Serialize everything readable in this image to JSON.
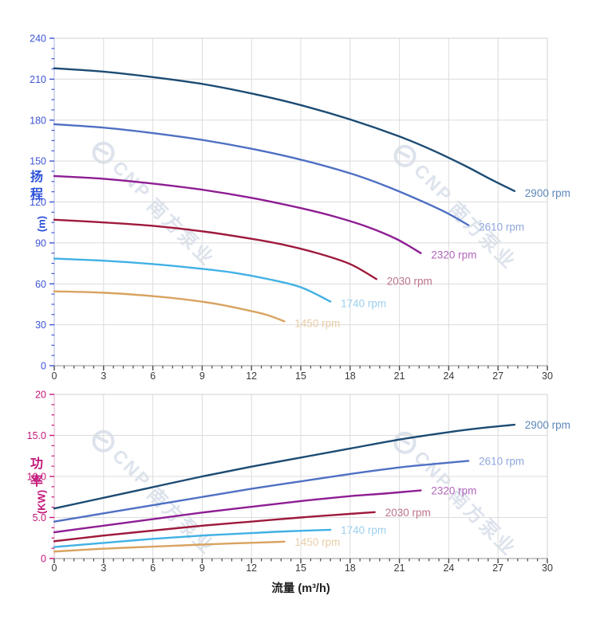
{
  "watermark": {
    "cnp": "CNP",
    "cn": "南方泵业",
    "color": "#c9d3e2"
  },
  "axes": {
    "head": {
      "zh": "扬程",
      "unit": "(m)",
      "title_color": "#2b50d9"
    },
    "power": {
      "zh": "功率",
      "unit": "(KW)",
      "title_color": "#c2187a"
    },
    "flow": {
      "label": "流量 (m³/h)",
      "num_color": "#3a3a3a",
      "tick_color": "#4a4a4a"
    }
  },
  "chart_data": [
    {
      "type": "line",
      "name": "head-vs-flow",
      "title": "",
      "xlabel": "流量 (m³/h)",
      "ylabel": "扬程 (m)",
      "xlim": [
        0,
        30
      ],
      "ylim": [
        0,
        240
      ],
      "xticks": [
        "0",
        "3",
        "6",
        "9",
        "12",
        "15",
        "18",
        "21",
        "24",
        "27",
        "30"
      ],
      "yticks": [
        "0",
        "30",
        "60",
        "90",
        "120",
        "150",
        "180",
        "210",
        "240"
      ],
      "grid": true,
      "legend_position": "labels-at-curve-ends",
      "axis_color": "#3d55d2",
      "axis_line_color": "#c4caec",
      "grid_color": "#dcdcdc",
      "border_color": "#d0d0d0",
      "bottom_line_color": "#a8a8a8",
      "series": [
        {
          "name": "2900 rpm",
          "color": "#1c4b73",
          "label_color": "#5e87ba",
          "points": [
            [
              0,
              218
            ],
            [
              3,
              215.5
            ],
            [
              6,
              211.5
            ],
            [
              9,
              206.5
            ],
            [
              12,
              199.5
            ],
            [
              15,
              191
            ],
            [
              18,
              180.5
            ],
            [
              21,
              168
            ],
            [
              23,
              158
            ],
            [
              25,
              146.5
            ],
            [
              26.5,
              137
            ],
            [
              28,
              128
            ]
          ]
        },
        {
          "name": "2610 rpm",
          "color": "#4f70c3",
          "label_color": "#8fa6dc",
          "points": [
            [
              0,
              177
            ],
            [
              3,
              174.5
            ],
            [
              6,
              170.5
            ],
            [
              9,
              165.5
            ],
            [
              12,
              159
            ],
            [
              15,
              151
            ],
            [
              18,
              141
            ],
            [
              20,
              132.5
            ],
            [
              22,
              122.5
            ],
            [
              23.8,
              112.5
            ],
            [
              25.2,
              103
            ]
          ]
        },
        {
          "name": "2320 rpm",
          "color": "#8e1e93",
          "label_color": "#b266bb",
          "points": [
            [
              0,
              139
            ],
            [
              3,
              137
            ],
            [
              6,
              133.5
            ],
            [
              9,
              129
            ],
            [
              12,
              123
            ],
            [
              15,
              115.5
            ],
            [
              17,
              109.5
            ],
            [
              19,
              102
            ],
            [
              20.8,
              93
            ],
            [
              22.3,
              82.5
            ]
          ]
        },
        {
          "name": "2030 rpm",
          "color": "#9e1a3c",
          "label_color": "#bd7488",
          "points": [
            [
              0,
              107
            ],
            [
              3,
              105
            ],
            [
              6,
              102.5
            ],
            [
              9,
              98.5
            ],
            [
              12,
              93
            ],
            [
              14,
              88.5
            ],
            [
              16,
              82.5
            ],
            [
              18,
              74.5
            ],
            [
              19.6,
              63.5
            ]
          ]
        },
        {
          "name": "1740 rpm",
          "color": "#41b1e4",
          "label_color": "#9cd1ee",
          "points": [
            [
              0,
              78.5
            ],
            [
              3,
              77
            ],
            [
              6,
              74.5
            ],
            [
              9,
              71
            ],
            [
              11,
              68
            ],
            [
              13,
              63.5
            ],
            [
              15,
              57.5
            ],
            [
              16.8,
              47
            ]
          ]
        },
        {
          "name": "1450 rpm",
          "color": "#d9a360",
          "label_color": "#e7cda6",
          "points": [
            [
              0,
              54.5
            ],
            [
              3,
              53.5
            ],
            [
              6,
              51
            ],
            [
              8,
              48.5
            ],
            [
              10,
              45
            ],
            [
              12,
              40
            ],
            [
              13,
              37
            ],
            [
              14,
              32.5
            ]
          ]
        }
      ]
    },
    {
      "type": "line",
      "name": "power-vs-flow",
      "title": "",
      "xlabel": "流量 (m³/h)",
      "ylabel": "功率 (KW)",
      "xlim": [
        0,
        30
      ],
      "ylim": [
        0,
        20
      ],
      "xticks": [
        "0",
        "3",
        "6",
        "9",
        "12",
        "15",
        "18",
        "21",
        "24",
        "27",
        "30"
      ],
      "yticks": [
        "0",
        "5.0",
        "10.0",
        "15.0",
        "20"
      ],
      "grid": true,
      "legend_position": "labels-at-curve-ends",
      "axis_color": "#c2187a",
      "axis_line_color": "#ecc4da",
      "grid_color": "#dcdcdc",
      "border_color": "#d0d0d0",
      "bottom_line_color": "#a8a8a8",
      "series": [
        {
          "name": "2900 rpm",
          "color": "#1c4b73",
          "label_color": "#5e87ba",
          "points": [
            [
              0,
              6.1
            ],
            [
              3,
              7.4
            ],
            [
              6,
              8.7
            ],
            [
              9,
              10
            ],
            [
              12,
              11.2
            ],
            [
              15,
              12.3
            ],
            [
              18,
              13.4
            ],
            [
              21,
              14.5
            ],
            [
              24,
              15.4
            ],
            [
              26,
              15.9
            ],
            [
              28,
              16.3
            ]
          ]
        },
        {
          "name": "2610 rpm",
          "color": "#4f70c3",
          "label_color": "#8fa6dc",
          "points": [
            [
              0,
              4.5
            ],
            [
              3,
              5.5
            ],
            [
              6,
              6.5
            ],
            [
              9,
              7.5
            ],
            [
              12,
              8.5
            ],
            [
              15,
              9.4
            ],
            [
              18,
              10.3
            ],
            [
              21,
              11.1
            ],
            [
              23,
              11.5
            ],
            [
              25.2,
              11.9
            ]
          ]
        },
        {
          "name": "2320 rpm",
          "color": "#8e1e93",
          "label_color": "#b266bb",
          "points": [
            [
              0,
              3.2
            ],
            [
              3,
              4
            ],
            [
              6,
              4.8
            ],
            [
              9,
              5.6
            ],
            [
              12,
              6.3
            ],
            [
              15,
              7
            ],
            [
              18,
              7.6
            ],
            [
              20,
              7.9
            ],
            [
              22.3,
              8.3
            ]
          ]
        },
        {
          "name": "2030 rpm",
          "color": "#9e1a3c",
          "label_color": "#bd7488",
          "points": [
            [
              0,
              2.1
            ],
            [
              3,
              2.8
            ],
            [
              6,
              3.4
            ],
            [
              9,
              4
            ],
            [
              12,
              4.5
            ],
            [
              15,
              5
            ],
            [
              17,
              5.3
            ],
            [
              19.5,
              5.65
            ]
          ]
        },
        {
          "name": "1740 rpm",
          "color": "#41b1e4",
          "label_color": "#9cd1ee",
          "points": [
            [
              0,
              1.4
            ],
            [
              3,
              1.9
            ],
            [
              6,
              2.4
            ],
            [
              9,
              2.8
            ],
            [
              12,
              3.1
            ],
            [
              14,
              3.3
            ],
            [
              16.8,
              3.5
            ]
          ]
        },
        {
          "name": "1450 rpm",
          "color": "#d9a360",
          "label_color": "#e7cda6",
          "points": [
            [
              0,
              0.85
            ],
            [
              3,
              1.2
            ],
            [
              6,
              1.45
            ],
            [
              9,
              1.7
            ],
            [
              11,
              1.85
            ],
            [
              14,
              2.05
            ]
          ]
        }
      ]
    }
  ]
}
